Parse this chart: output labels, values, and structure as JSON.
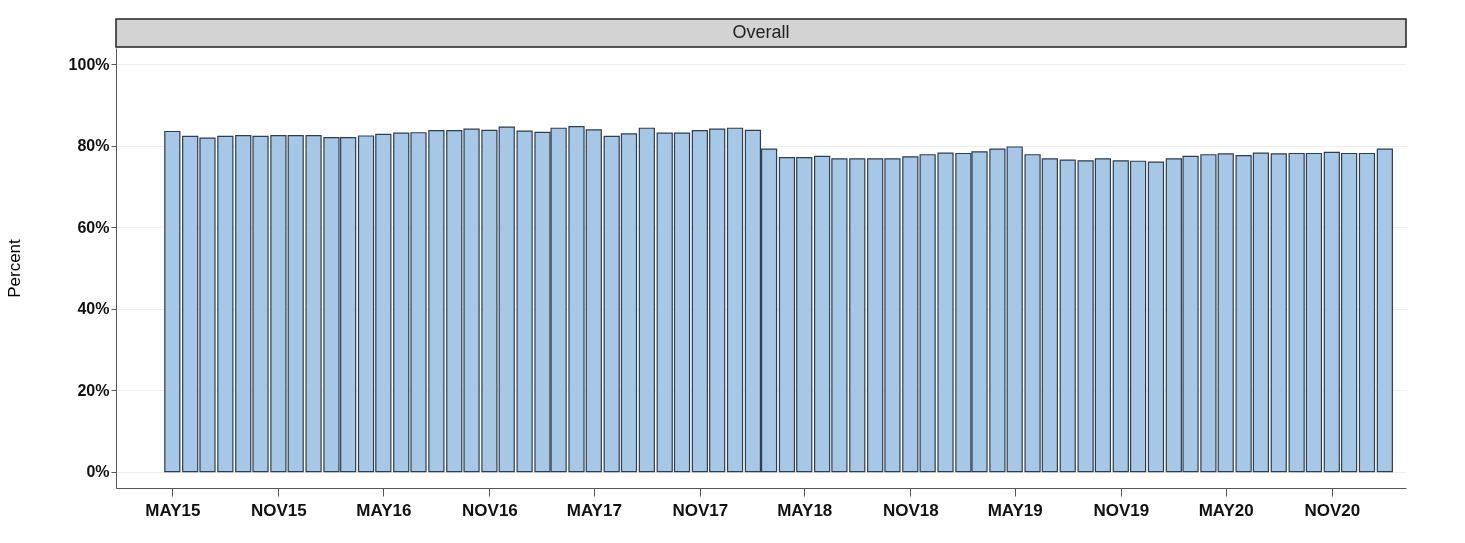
{
  "chart_data": {
    "type": "bar",
    "title": "Overall",
    "ylabel": "Percent",
    "x": [
      "2015-05",
      "2015-06",
      "2015-07",
      "2015-08",
      "2015-09",
      "2015-10",
      "2015-11",
      "2015-12",
      "2016-01",
      "2016-02",
      "2016-03",
      "2016-04",
      "2016-05",
      "2016-06",
      "2016-07",
      "2016-08",
      "2016-09",
      "2016-10",
      "2016-11",
      "2016-12",
      "2017-01",
      "2017-02",
      "2017-03",
      "2017-04",
      "2017-05",
      "2017-06",
      "2017-07",
      "2017-08",
      "2017-09",
      "2017-10",
      "2017-11",
      "2017-12",
      "2018-01",
      "2018-02",
      "2018-03",
      "2018-04",
      "2018-05",
      "2018-06",
      "2018-07",
      "2018-08",
      "2018-09",
      "2018-10",
      "2018-11",
      "2018-12",
      "2019-01",
      "2019-02",
      "2019-03",
      "2019-04",
      "2019-05",
      "2019-06",
      "2019-07",
      "2019-08",
      "2019-09",
      "2019-10",
      "2019-11",
      "2019-12",
      "2020-01",
      "2020-02",
      "2020-03",
      "2020-04",
      "2020-05",
      "2020-06",
      "2020-07",
      "2020-08",
      "2020-09",
      "2020-10",
      "2020-11",
      "2020-12",
      "2021-01",
      "2021-02"
    ],
    "values": [
      83.5,
      82.3,
      81.9,
      82.3,
      82.5,
      82.3,
      82.5,
      82.5,
      82.5,
      82.0,
      82.0,
      82.4,
      82.8,
      83.1,
      83.2,
      83.7,
      83.7,
      84.1,
      83.8,
      84.6,
      83.6,
      83.3,
      84.3,
      84.7,
      83.9,
      82.3,
      82.9,
      84.3,
      83.1,
      83.1,
      83.7,
      84.1,
      84.3,
      83.8,
      79.2,
      77.1,
      77.1,
      77.4,
      76.8,
      76.8,
      76.8,
      76.8,
      77.3,
      77.8,
      78.2,
      78.1,
      78.5,
      79.2,
      79.7,
      77.8,
      76.8,
      76.5,
      76.3,
      76.8,
      76.3,
      76.2,
      76.0,
      76.8,
      77.4,
      77.8,
      78.0,
      77.6,
      78.2,
      78.0,
      78.1,
      78.1,
      78.4,
      78.1,
      78.1,
      79.2
    ],
    "color": "#a7c7e7",
    "xlim": [
      "2015-02",
      "2021-03"
    ],
    "xticks": [
      {
        "value": "2015-05",
        "label": "MAY15"
      },
      {
        "value": "2015-11",
        "label": "NOV15"
      },
      {
        "value": "2016-05",
        "label": "MAY16"
      },
      {
        "value": "2016-11",
        "label": "NOV16"
      },
      {
        "value": "2017-05",
        "label": "MAY17"
      },
      {
        "value": "2017-11",
        "label": "NOV17"
      },
      {
        "value": "2018-05",
        "label": "MAY18"
      },
      {
        "value": "2018-11",
        "label": "NOV18"
      },
      {
        "value": "2019-05",
        "label": "MAY19"
      },
      {
        "value": "2019-11",
        "label": "NOV19"
      },
      {
        "value": "2020-05",
        "label": "MAY20"
      },
      {
        "value": "2020-11",
        "label": "NOV20"
      }
    ],
    "ylim": [
      -4,
      104
    ],
    "yticks": [
      {
        "value": 0,
        "label": "0%"
      },
      {
        "value": 20,
        "label": "20%"
      },
      {
        "value": 40,
        "label": "40%"
      },
      {
        "value": 60,
        "label": "60%"
      },
      {
        "value": 80,
        "label": "80%"
      },
      {
        "value": 100,
        "label": "100%"
      }
    ],
    "grid": "y"
  }
}
